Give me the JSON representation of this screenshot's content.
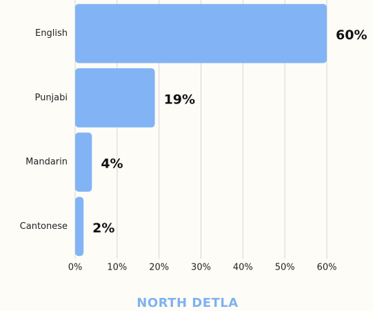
{
  "chart_data": {
    "type": "bar",
    "orientation": "horizontal",
    "title": "NORTH DETLA",
    "categories": [
      "English",
      "Punjabi",
      "Mandarin",
      "Cantonese"
    ],
    "values": [
      60,
      19,
      4,
      2
    ],
    "value_labels": [
      "60%",
      "19%",
      "4%",
      "2%"
    ],
    "color": "#82b4f5",
    "xlim": [
      0,
      60
    ],
    "xticks": [
      {
        "value": 0,
        "label": "0%"
      },
      {
        "value": 10,
        "label": "10%"
      },
      {
        "value": 20,
        "label": "20%"
      },
      {
        "value": 30,
        "label": "30%"
      },
      {
        "value": 40,
        "label": "40%"
      },
      {
        "value": 50,
        "label": "50%"
      },
      {
        "value": 60,
        "label": "60%"
      }
    ],
    "grid": true
  }
}
